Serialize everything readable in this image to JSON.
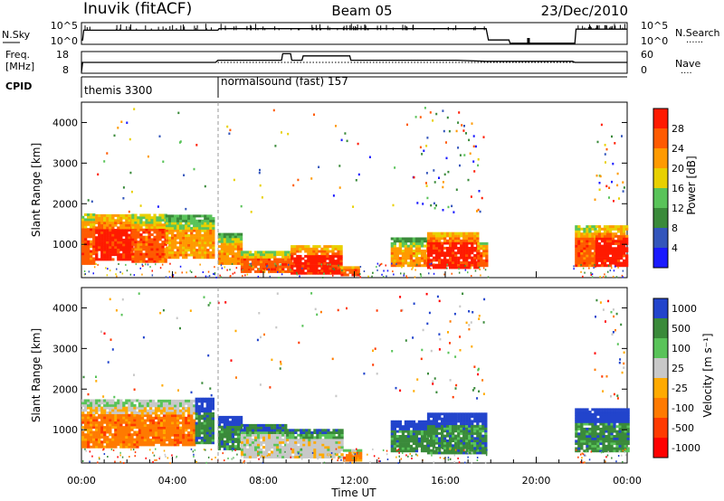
{
  "header": {
    "station": "Inuvik (fitACF)",
    "beam": "Beam 05",
    "date": "23/Dec/2010"
  },
  "labels": {
    "nsky": "N.Sky",
    "nsearch": "N.Search",
    "freq_line1": "Freq.",
    "freq_line2": "[MHz]",
    "nave": "Nave",
    "cpid": "CPID",
    "legend_dots": "......",
    "legend_dots_short": "...."
  },
  "cpid": {
    "segment1": "themis 3300",
    "segment2": "normalsound (fast) 157"
  },
  "colorbars": {
    "power": {
      "label": "Power [dB]",
      "ticks": [
        "4",
        "8",
        "12",
        "16",
        "20",
        "24",
        "28"
      ],
      "colors": [
        "#1a1aff",
        "#3355bb",
        "#3a8a3a",
        "#59c359",
        "#e8d000",
        "#ff9a00",
        "#ff5a00",
        "#ff1a00"
      ]
    },
    "velocity": {
      "label": "Velocity [m s⁻¹]",
      "ticks": [
        "1000",
        "500",
        "100",
        "25",
        "-25",
        "-100",
        "-500",
        "-1000"
      ],
      "colors": [
        "#2244cc",
        "#3a8a3a",
        "#59c359",
        "#c8c8c8",
        "#ffaa00",
        "#ff7a00",
        "#ff3a00",
        "#ff0000"
      ]
    }
  },
  "chart_data": [
    {
      "type": "line",
      "title": "N.Sky",
      "x_range_hours": [
        0,
        24
      ],
      "y_ticks_left": [
        "10^5",
        "10^0"
      ],
      "y_ticks_right": [
        "10^5",
        "10^0"
      ],
      "series": [
        {
          "name": "N.Sky",
          "x": [
            0,
            0.05,
            0.1,
            6,
            6.05,
            17.8,
            17.9,
            18.8,
            18.85,
            21.7,
            21.75,
            24
          ],
          "y": [
            0.2,
            0.2,
            0.65,
            0.65,
            0.72,
            0.72,
            0.2,
            0.2,
            0.05,
            0.05,
            0.7,
            0.7
          ]
        }
      ]
    },
    {
      "type": "line",
      "title": "Freq.",
      "x_range_hours": [
        0,
        24
      ],
      "y_ticks_left": [
        "18",
        "8"
      ],
      "y_ticks_right": [
        "60",
        "0"
      ],
      "series": [
        {
          "name": "Freq.",
          "x": [
            0,
            0.05,
            5.9,
            6.0,
            8.8,
            8.85,
            9.2,
            9.25,
            9.7,
            9.75,
            11.8,
            11.85,
            16.5,
            17.8,
            21.6,
            21.7,
            24
          ],
          "y": [
            8.5,
            13,
            13,
            14,
            14,
            17,
            17,
            14,
            14,
            16,
            16,
            14,
            14,
            13.5,
            13.5,
            13,
            13
          ]
        },
        {
          "name": "Nave",
          "x": [
            0,
            24
          ],
          "y": [
            30,
            30
          ]
        }
      ]
    },
    {
      "type": "heatmap",
      "title": "Power",
      "xlabel": "",
      "ylabel": "Slant Range [km]",
      "x_range_hours": [
        0,
        24
      ],
      "ylim": [
        180,
        4500
      ],
      "y_ticks": [
        1000,
        2000,
        3000,
        4000
      ],
      "colorbar": "power",
      "segments": [
        {
          "t0": 0.0,
          "t1": 0.6,
          "r0": 500,
          "r1": 1750,
          "level": 6
        },
        {
          "t0": 0.6,
          "t1": 2.2,
          "r0": 600,
          "r1": 1700,
          "level": 7
        },
        {
          "t0": 2.2,
          "t1": 3.7,
          "r0": 550,
          "r1": 1700,
          "level": 6
        },
        {
          "t0": 3.7,
          "t1": 5.8,
          "r0": 650,
          "r1": 1700,
          "level": 5
        },
        {
          "t0": 6.0,
          "t1": 7.0,
          "r0": 500,
          "r1": 1250,
          "level": 5
        },
        {
          "t0": 7.0,
          "t1": 9.2,
          "r0": 300,
          "r1": 800,
          "level": 6
        },
        {
          "t0": 9.2,
          "t1": 11.4,
          "r0": 260,
          "r1": 950,
          "level": 7
        },
        {
          "t0": 11.4,
          "t1": 12.2,
          "r0": 220,
          "r1": 450,
          "level": 6
        },
        {
          "t0": 13.6,
          "t1": 15.2,
          "r0": 450,
          "r1": 1150,
          "level": 5
        },
        {
          "t0": 15.2,
          "t1": 17.4,
          "r0": 400,
          "r1": 1300,
          "level": 7
        },
        {
          "t0": 17.4,
          "t1": 17.8,
          "r0": 450,
          "r1": 1050,
          "level": 6
        },
        {
          "t0": 21.7,
          "t1": 22.6,
          "r0": 450,
          "r1": 1450,
          "level": 6
        },
        {
          "t0": 22.6,
          "t1": 24.0,
          "r0": 450,
          "r1": 1450,
          "level": 7
        }
      ]
    },
    {
      "type": "heatmap",
      "title": "Velocity",
      "xlabel": "Time UT",
      "ylabel": "Slant Range [km]",
      "x_range_hours": [
        0,
        24
      ],
      "ylim": [
        180,
        4500
      ],
      "y_ticks": [
        1000,
        2000,
        3000,
        4000
      ],
      "x_ticks": [
        "00:00",
        "04:00",
        "08:00",
        "12:00",
        "16:00",
        "20:00",
        "00:00"
      ],
      "colorbar": "velocity",
      "segments": [
        {
          "t0": 0.0,
          "t1": 2.5,
          "r0": 550,
          "r1": 1750,
          "level": 5
        },
        {
          "t0": 2.5,
          "t1": 5.0,
          "r0": 600,
          "r1": 1700,
          "level": 5
        },
        {
          "t0": 5.0,
          "t1": 5.8,
          "r0": 650,
          "r1": 1750,
          "level": 1
        },
        {
          "t0": 6.0,
          "t1": 7.0,
          "r0": 500,
          "r1": 1300,
          "level": 1
        },
        {
          "t0": 7.0,
          "t1": 9.0,
          "r0": 300,
          "r1": 1100,
          "level": 3
        },
        {
          "t0": 9.0,
          "t1": 11.5,
          "r0": 300,
          "r1": 1000,
          "level": 3
        },
        {
          "t0": 11.5,
          "t1": 12.3,
          "r0": 220,
          "r1": 500,
          "level": 5
        },
        {
          "t0": 13.6,
          "t1": 15.2,
          "r0": 450,
          "r1": 1200,
          "level": 1
        },
        {
          "t0": 15.2,
          "t1": 17.8,
          "r0": 400,
          "r1": 1400,
          "level": 1
        },
        {
          "t0": 21.7,
          "t1": 24.0,
          "r0": 450,
          "r1": 1500,
          "level": 1
        }
      ]
    }
  ]
}
